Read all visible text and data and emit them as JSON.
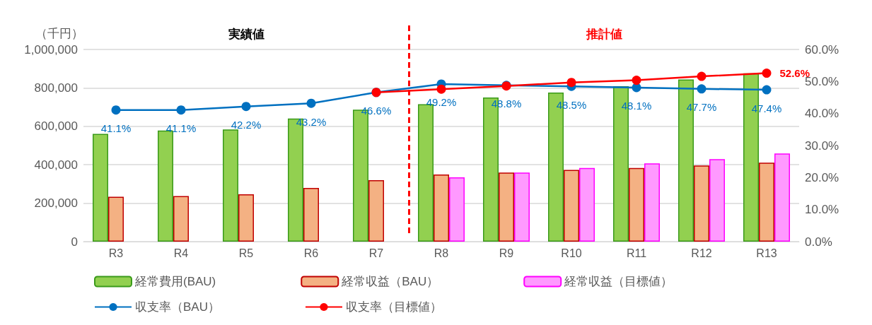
{
  "chart_data": {
    "type": "bar",
    "ylabel": "（千円）",
    "categories": [
      "R3",
      "R4",
      "R5",
      "R6",
      "R7",
      "R8",
      "R9",
      "R10",
      "R11",
      "R12",
      "R13"
    ],
    "series": [
      {
        "name": "経常費用(BAU)",
        "color": "#92d050",
        "values": [
          561000,
          578000,
          584000,
          641000,
          687000,
          715000,
          750000,
          776000,
          809000,
          844000,
          876000
        ]
      },
      {
        "name": "経常収益（BAU）",
        "color": "#f4b183",
        "values": [
          233000,
          237000,
          246000,
          279000,
          320000,
          349000,
          359000,
          373000,
          383000,
          396000,
          411000
        ]
      },
      {
        "name": "経常収益（目標値）",
        "color": "#ff99ff",
        "values": [
          null,
          null,
          null,
          null,
          null,
          335000,
          359000,
          383000,
          407000,
          429000,
          459000
        ]
      },
      {
        "name": "収支率（BAU）",
        "type": "line",
        "axis": "y2",
        "color": "#0070c0",
        "values": [
          41.1,
          41.1,
          42.2,
          43.2,
          46.6,
          49.2,
          48.8,
          48.5,
          48.1,
          47.7,
          47.4
        ],
        "value_labels": [
          "41.1%",
          "41.1%",
          "42.2%",
          "43.2%",
          "46.6%",
          "49.2%",
          "48.8%",
          "48.5%",
          "48.1%",
          "47.7%",
          "47.4%"
        ]
      },
      {
        "name": "収支率（目標値）",
        "type": "line",
        "axis": "y2",
        "color": "#ff0000",
        "values": [
          null,
          null,
          null,
          null,
          46.6,
          47.6,
          48.6,
          49.7,
          50.4,
          51.6,
          52.6
        ],
        "value_labels": [
          null,
          null,
          null,
          null,
          null,
          null,
          null,
          null,
          null,
          null,
          "52.6%"
        ]
      }
    ],
    "ylim": [
      0,
      1000000
    ],
    "yticks": [
      {
        "value": 0,
        "label": "0"
      },
      {
        "value": 200000,
        "label": "200,000"
      },
      {
        "value": 400000,
        "label": "400,000"
      },
      {
        "value": 600000,
        "label": "600,000"
      },
      {
        "value": 800000,
        "label": "800,000"
      },
      {
        "value": 1000000,
        "label": "1,000,000"
      }
    ],
    "y2lim": [
      0,
      60
    ],
    "y2ticks": [
      {
        "value": 0,
        "label": "0.0%"
      },
      {
        "value": 10,
        "label": "10.0%"
      },
      {
        "value": 20,
        "label": "20.0%"
      },
      {
        "value": 30,
        "label": "30.0%"
      },
      {
        "value": 40,
        "label": "40.0%"
      },
      {
        "value": 50,
        "label": "50.0%"
      },
      {
        "value": 60,
        "label": "60.0%"
      }
    ],
    "annotations": [
      "実績値",
      "推計値"
    ],
    "grid": "y",
    "legend": "bottom",
    "marker": "circle"
  }
}
